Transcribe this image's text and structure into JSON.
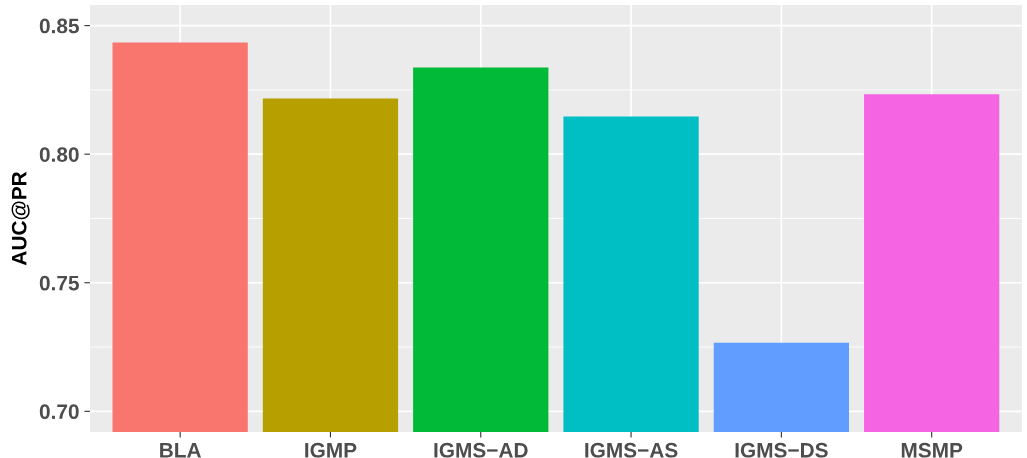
{
  "chart_data": {
    "type": "bar",
    "ylabel": "AUC@PR",
    "categories": [
      "BLA",
      "IGMP",
      "IGMS−AD",
      "IGMS−AS",
      "IGMS−DS",
      "MSMP"
    ],
    "values": [
      0.8434,
      0.8217,
      0.8337,
      0.8147,
      0.7267,
      0.8233
    ],
    "colors": [
      "#f8766d",
      "#b79f00",
      "#00ba38",
      "#00bfc4",
      "#619cff",
      "#f564e3"
    ],
    "ylim": [
      0.692,
      0.858
    ],
    "yticks": [
      {
        "value": 0.7,
        "label": "0.70"
      },
      {
        "value": 0.75,
        "label": "0.75"
      },
      {
        "value": 0.8,
        "label": "0.80"
      },
      {
        "value": 0.85,
        "label": "0.85"
      }
    ],
    "grid": true,
    "legend": false
  }
}
